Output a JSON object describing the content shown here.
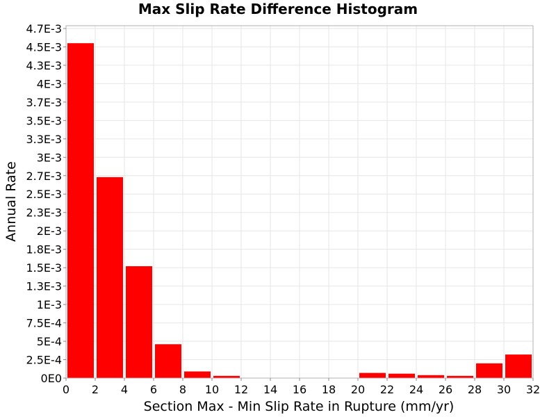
{
  "chart_data": {
    "type": "bar",
    "title": "Max Slip Rate Difference Histogram",
    "xlabel": "Section Max - Min Slip Rate in Rupture (mm/yr)",
    "ylabel": "Annual Rate",
    "bin_width": 2,
    "bin_starts": [
      0,
      2,
      4,
      6,
      8,
      10,
      12,
      14,
      16,
      18,
      20,
      22,
      24,
      26,
      28,
      30
    ],
    "values": [
      0.00455,
      0.00273,
      0.00152,
      0.00046,
      9e-05,
      3e-05,
      0,
      0,
      0,
      0,
      7e-05,
      6e-05,
      4e-05,
      3e-05,
      0.0002,
      0.00032
    ],
    "xlim": [
      0,
      32
    ],
    "ylim": [
      0,
      0.0047875
    ],
    "x_ticks": [
      "0",
      "2",
      "4",
      "6",
      "8",
      "10",
      "12",
      "14",
      "16",
      "18",
      "20",
      "22",
      "24",
      "26",
      "28",
      "30",
      "32"
    ],
    "y_tick_values": [
      0,
      0.00025,
      0.0005,
      0.00075,
      0.001,
      0.00125,
      0.0015,
      0.00175,
      0.002,
      0.00225,
      0.0025,
      0.00275,
      0.003,
      0.00325,
      0.0035,
      0.00375,
      0.004,
      0.00425,
      0.0045,
      0.00475
    ],
    "y_ticks": [
      "0E0",
      "2.5E-4",
      "5E-4",
      "7.5E-4",
      "1E-3",
      "1.3E-3",
      "1.5E-3",
      "1.8E-3",
      "2E-3",
      "2.3E-3",
      "2.5E-3",
      "2.7E-3",
      "3E-3",
      "3.3E-3",
      "3.5E-3",
      "3.7E-3",
      "4E-3",
      "4.3E-3",
      "4.5E-3",
      "4.7E-3"
    ],
    "grid": true,
    "colors": {
      "bar": "#ff0000",
      "grid": "#e6e6e6",
      "plot_border": "#b0b0b0"
    }
  }
}
